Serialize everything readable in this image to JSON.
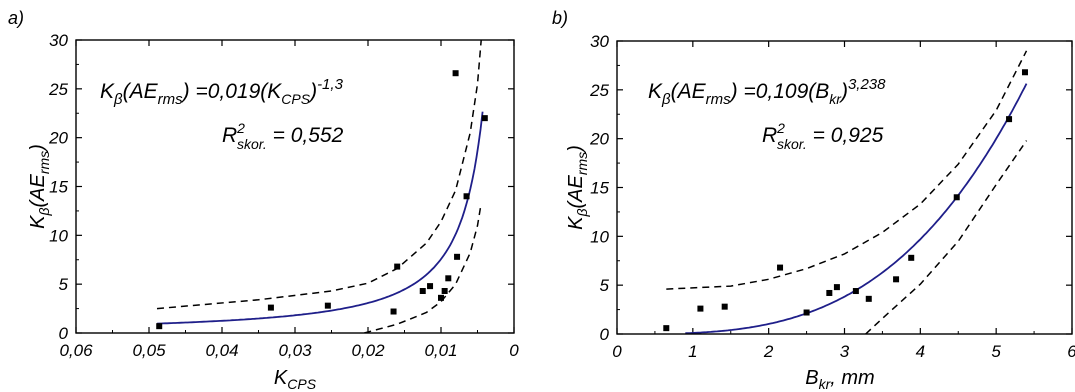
{
  "chart_data": [
    {
      "type": "scatter",
      "panel_label": "a)",
      "xlabel": {
        "main": "K",
        "sub": "CPS"
      },
      "ylabel": {
        "main": "K",
        "sub1": "β",
        "mid": "(AE",
        "sub2": "rms",
        "end": ")"
      },
      "x_reversed": true,
      "xlim": [
        0.06,
        0
      ],
      "ylim": [
        0,
        30
      ],
      "xticks": [
        0.06,
        0.05,
        0.04,
        0.03,
        0.02,
        0.01,
        0
      ],
      "xtick_labels": [
        "0,06",
        "0,05",
        "0,04",
        "0,03",
        "0,02",
        "0,01",
        "0"
      ],
      "yticks": [
        0,
        5,
        10,
        15,
        20,
        25,
        30
      ],
      "ytick_labels": [
        "0",
        "5",
        "10",
        "15",
        "20",
        "25",
        "30"
      ],
      "equation": {
        "lhs_main": "K",
        "lhs_sub1": "β",
        "lhs_mid": "(AE",
        "lhs_sub2": "rms",
        "lhs_end": ")",
        "eq": " =0,019(K",
        "sub": "CPS",
        "close": ")",
        "sup": "-1,3"
      },
      "r2": {
        "main": "R",
        "sup": "2",
        "sub": "skor.",
        "value": " = 0,552"
      },
      "fit_model": {
        "a": 0.019,
        "b": -1.3,
        "x_range": [
          0.0043,
          0.0489
        ]
      },
      "band_upper": [
        [
          0.0489,
          2.5
        ],
        [
          0.035,
          3.4
        ],
        [
          0.025,
          4.3
        ],
        [
          0.02,
          5.1
        ],
        [
          0.016,
          6.6
        ],
        [
          0.012,
          9.2
        ],
        [
          0.01,
          11.4
        ],
        [
          0.008,
          14.6
        ],
        [
          0.006,
          20.5
        ],
        [
          0.005,
          25.5
        ],
        [
          0.0045,
          30
        ]
      ],
      "band_lower": [
        [
          0.0205,
          0
        ],
        [
          0.016,
          0.9
        ],
        [
          0.012,
          2.1
        ],
        [
          0.01,
          3.2
        ],
        [
          0.008,
          5.0
        ],
        [
          0.006,
          8.2
        ],
        [
          0.005,
          11.0
        ],
        [
          0.0045,
          13.3
        ]
      ],
      "points": [
        [
          0.0486,
          0.7
        ],
        [
          0.0333,
          2.6
        ],
        [
          0.0255,
          2.8
        ],
        [
          0.0165,
          2.2
        ],
        [
          0.016,
          6.8
        ],
        [
          0.0125,
          4.3
        ],
        [
          0.0115,
          4.8
        ],
        [
          0.01,
          3.6
        ],
        [
          0.0095,
          4.3
        ],
        [
          0.009,
          5.6
        ],
        [
          0.008,
          26.6
        ],
        [
          0.0078,
          7.8
        ],
        [
          0.0065,
          14.0
        ],
        [
          0.004,
          22.0
        ]
      ]
    },
    {
      "type": "scatter",
      "panel_label": "b)",
      "xlabel": {
        "main": "B",
        "sub": "kr",
        "tail": ", mm"
      },
      "ylabel": {
        "main": "K",
        "sub1": "β",
        "mid": "(AE",
        "sub2": "rms",
        "end": ")"
      },
      "x_reversed": false,
      "xlim": [
        0,
        6
      ],
      "ylim": [
        0,
        30
      ],
      "xticks": [
        0,
        1,
        2,
        3,
        4,
        5,
        6
      ],
      "xtick_labels": [
        "0",
        "1",
        "2",
        "3",
        "4",
        "5",
        "6"
      ],
      "yticks": [
        0,
        5,
        10,
        15,
        20,
        25,
        30
      ],
      "ytick_labels": [
        "0",
        "5",
        "10",
        "15",
        "20",
        "25",
        "30"
      ],
      "equation": {
        "lhs_main": "K",
        "lhs_sub1": "β",
        "lhs_mid": "(AE",
        "lhs_sub2": "rms",
        "lhs_end": ")",
        "eq": " =0,109(B",
        "sub": "kr",
        "close": ")",
        "sup": "3,238"
      },
      "r2": {
        "main": "R",
        "sup": "2",
        "sub": "skor.",
        "value": " = 0,925"
      },
      "fit_model": {
        "a": 0.109,
        "b": 3.238,
        "x_range": [
          0.9,
          5.4
        ]
      },
      "band_upper": [
        [
          0.65,
          4.6
        ],
        [
          1.5,
          4.9
        ],
        [
          2.0,
          5.6
        ],
        [
          2.5,
          6.7
        ],
        [
          3.0,
          8.2
        ],
        [
          3.5,
          10.4
        ],
        [
          4.0,
          13.3
        ],
        [
          4.5,
          17.4
        ],
        [
          5.0,
          22.9
        ],
        [
          5.4,
          29.0
        ]
      ],
      "band_lower": [
        [
          3.28,
          0
        ],
        [
          3.5,
          1.6
        ],
        [
          4.0,
          5.1
        ],
        [
          4.5,
          9.5
        ],
        [
          5.0,
          15.3
        ],
        [
          5.4,
          19.8
        ]
      ],
      "points": [
        [
          0.65,
          0.6
        ],
        [
          1.1,
          2.6
        ],
        [
          1.42,
          2.8
        ],
        [
          2.15,
          6.8
        ],
        [
          2.5,
          2.2
        ],
        [
          2.8,
          4.2
        ],
        [
          2.9,
          4.8
        ],
        [
          3.15,
          4.4
        ],
        [
          3.32,
          3.6
        ],
        [
          3.68,
          5.6
        ],
        [
          3.88,
          7.8
        ],
        [
          4.48,
          14.0
        ],
        [
          5.17,
          22.0
        ],
        [
          5.38,
          26.8
        ]
      ]
    }
  ],
  "colors": {
    "fit": "#1f1f8a",
    "band": "#000000",
    "marker": "#000000",
    "axis": "#000000"
  }
}
